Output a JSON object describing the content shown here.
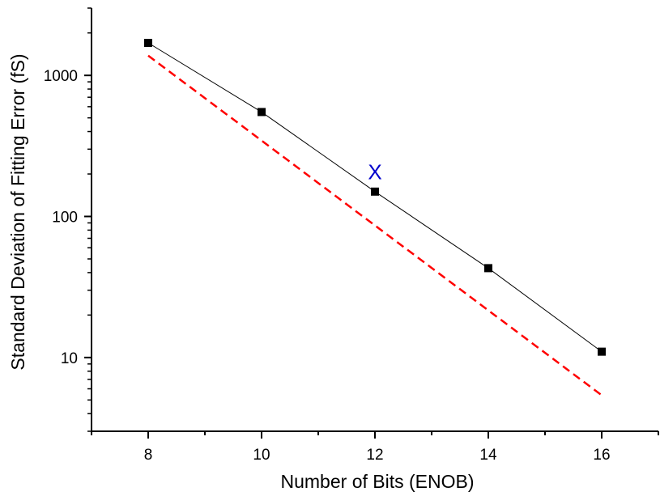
{
  "chart_data": {
    "type": "scatter",
    "xlabel": "Number of Bits (ENOB)",
    "ylabel": "Standard Deviation of Fitting Error (fS)",
    "xlim": [
      7,
      17
    ],
    "ylim": [
      3,
      3000
    ],
    "yscale": "log",
    "xticks": [
      8,
      10,
      12,
      14,
      16
    ],
    "xtick_labels": [
      "8",
      "10",
      "12",
      "14",
      "16"
    ],
    "xminor": [
      7,
      9,
      11,
      13,
      15,
      17
    ],
    "yticks": [
      10,
      100,
      1000
    ],
    "ytick_labels": [
      "10",
      "100",
      "1000"
    ],
    "grid": false,
    "legend": "none",
    "series": [
      {
        "type": "line+markers",
        "color": "#000000",
        "marker": "square",
        "x": [
          8,
          10,
          12,
          14,
          16
        ],
        "y": [
          1700,
          550,
          150,
          43,
          11
        ]
      },
      {
        "type": "dashed-line",
        "color": "#ff0000",
        "x": [
          8,
          16
        ],
        "y": [
          1380,
          5.4
        ]
      },
      {
        "type": "marker",
        "color": "#0000cc",
        "marker": "x",
        "label": "X",
        "x": [
          12
        ],
        "y": [
          210
        ]
      }
    ]
  }
}
